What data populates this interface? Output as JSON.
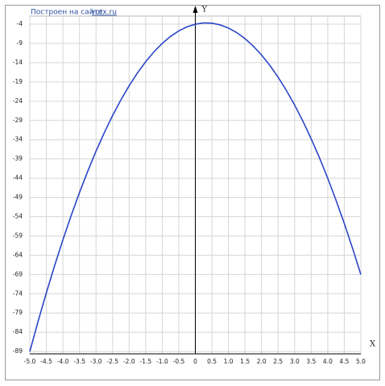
{
  "chart_data": {
    "type": "line",
    "credit": {
      "text": "Построен на сайте",
      "link": "yotx.ru"
    },
    "xlabel": "X",
    "ylabel": "Y",
    "x": [
      -5,
      -4.75,
      -4.5,
      -4.25,
      -4,
      -3.75,
      -3.5,
      -3.25,
      -3,
      -2.75,
      -2.5,
      -2.25,
      -2,
      -1.75,
      -1.5,
      -1.25,
      -1,
      -0.75,
      -0.5,
      -0.25,
      0,
      0.25,
      0.5,
      0.75,
      1,
      1.25,
      1.5,
      1.75,
      2,
      2.25,
      2.5,
      2.75,
      3,
      3.25,
      3.5,
      3.75,
      4,
      4.25,
      4.5,
      4.75,
      5
    ],
    "series": [
      {
        "color": "#2b45c8",
        "values": [
          -89,
          -81.1875,
          -73.75,
          -66.6875,
          -60,
          -53.6875,
          -47.75,
          -42.1875,
          -37,
          -32.1875,
          -27.75,
          -23.6875,
          -20,
          -16.6875,
          -13.75,
          -11.1875,
          -9,
          -7.1875,
          -5.75,
          -4.6875,
          -4,
          -3.6875,
          -3.75,
          -4.1875,
          -5,
          -6.1875,
          -7.75,
          -9.6875,
          -12,
          -14.6875,
          -17.75,
          -21.1875,
          -25,
          -29.1875,
          -33.75,
          -38.6875,
          -44,
          -49.6875,
          -55.75,
          -62.1875,
          -69
        ]
      }
    ],
    "xlim": [
      -5,
      5
    ],
    "ylim": [
      -89.6,
      -1.9
    ],
    "xticks": [
      {
        "value": -5,
        "label": "-5.0"
      },
      -4.5,
      {
        "value": -4,
        "label": "-4.0"
      },
      -3.5,
      {
        "value": -3,
        "label": "-3.0"
      },
      -2.5,
      {
        "value": -2,
        "label": "-2.0"
      },
      -1.5,
      {
        "value": -1,
        "label": "-1.0"
      },
      -0.5,
      0,
      0.5,
      {
        "value": 1,
        "label": "1.0"
      },
      1.5,
      {
        "value": 2,
        "label": "2.0"
      },
      2.5,
      {
        "value": 3,
        "label": "3.0"
      },
      3.5,
      {
        "value": 4,
        "label": "4.0"
      },
      4.5,
      {
        "value": 5,
        "label": "5.0"
      }
    ],
    "yticks": [
      -4,
      -9,
      -14,
      -19,
      -24,
      -29,
      -34,
      -39,
      -44,
      -49,
      -54,
      -59,
      -64,
      -69,
      -74,
      -79,
      -84,
      -89
    ],
    "grid": true
  }
}
